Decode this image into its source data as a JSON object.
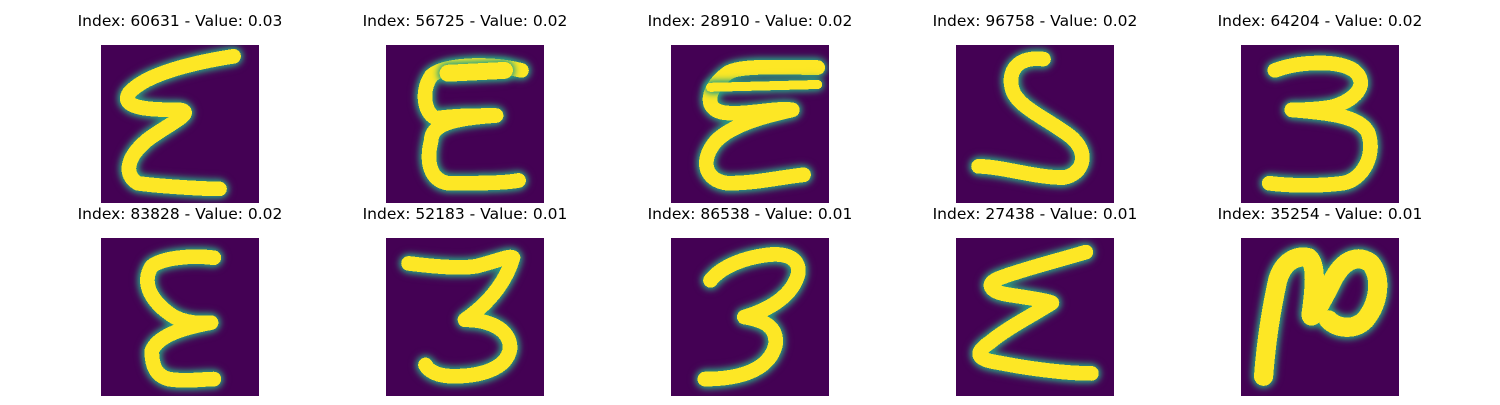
{
  "colors": {
    "background": "#440154",
    "mid": "#21918c",
    "stroke": "#fde725"
  },
  "panels": [
    {
      "title": "Index: 60631 - Value: 0.03",
      "icon": "handwritten-digit-3-mirrored-icon"
    },
    {
      "title": "Index: 56725 - Value: 0.02",
      "icon": "handwritten-digit-3-mirrored-icon"
    },
    {
      "title": "Index: 28910 - Value: 0.02",
      "icon": "handwritten-digit-3-mirrored-icon"
    },
    {
      "title": "Index: 96758 - Value: 0.02",
      "icon": "handwritten-digit-5-icon"
    },
    {
      "title": "Index: 64204 - Value: 0.02",
      "icon": "handwritten-digit-3-icon"
    },
    {
      "title": "Index: 83828 - Value: 0.02",
      "icon": "handwritten-digit-3-mirrored-icon"
    },
    {
      "title": "Index: 52183 - Value: 0.01",
      "icon": "handwritten-digit-3-icon"
    },
    {
      "title": "Index: 86538 - Value: 0.01",
      "icon": "handwritten-digit-3-icon"
    },
    {
      "title": "Index: 27438 - Value: 0.01",
      "icon": "handwritten-digit-3-mirrored-icon"
    },
    {
      "title": "Index: 35254 - Value: 0.01",
      "icon": "handwritten-digit-2-icon"
    }
  ]
}
